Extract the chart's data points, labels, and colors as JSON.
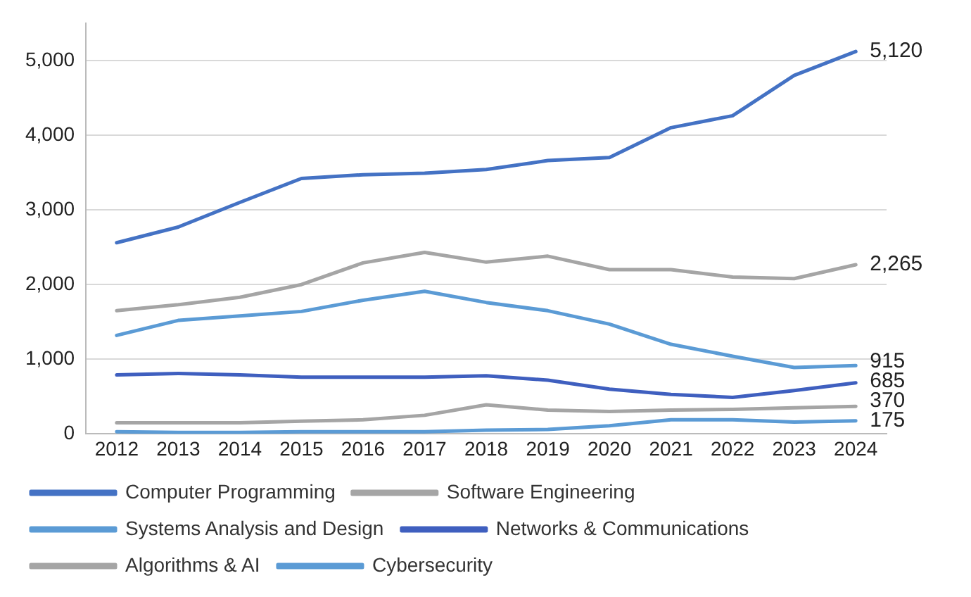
{
  "chart_data": {
    "type": "line",
    "categories": [
      "2012",
      "2013",
      "2014",
      "2015",
      "2016",
      "2017",
      "2018",
      "2019",
      "2020",
      "2021",
      "2022",
      "2023",
      "2024"
    ],
    "series": [
      {
        "name": "Computer Programming",
        "color": "#4472c4",
        "values": [
          2560,
          2770,
          3100,
          3420,
          3470,
          3490,
          3540,
          3660,
          3700,
          4100,
          4260,
          4800,
          5120
        ],
        "value_labels": [
          null,
          null,
          null,
          null,
          null,
          null,
          null,
          null,
          null,
          null,
          null,
          null,
          "5,120"
        ]
      },
      {
        "name": "Software Engineering",
        "color": "#a5a5a5",
        "values": [
          1650,
          1730,
          1830,
          2000,
          2290,
          2430,
          2300,
          2380,
          2200,
          2200,
          2100,
          2080,
          2265
        ],
        "value_labels": [
          null,
          null,
          null,
          null,
          null,
          null,
          null,
          null,
          null,
          null,
          null,
          null,
          "2,265"
        ]
      },
      {
        "name": "Systems Analysis and Design",
        "color": "#5b9bd5",
        "values": [
          1320,
          1520,
          1580,
          1640,
          1790,
          1910,
          1760,
          1650,
          1470,
          1200,
          1040,
          890,
          915
        ],
        "value_labels": [
          null,
          null,
          null,
          null,
          null,
          null,
          null,
          null,
          null,
          null,
          null,
          null,
          "915"
        ]
      },
      {
        "name": "Networks & Communications",
        "color": "#3f5fbf",
        "values": [
          790,
          810,
          790,
          760,
          760,
          760,
          780,
          720,
          600,
          530,
          490,
          580,
          685
        ],
        "value_labels": [
          null,
          null,
          null,
          null,
          null,
          null,
          null,
          null,
          null,
          null,
          null,
          null,
          "685"
        ]
      },
      {
        "name": "Algorithms & AI",
        "color": "#a5a5a5",
        "values": [
          150,
          150,
          150,
          170,
          190,
          250,
          390,
          320,
          300,
          320,
          330,
          350,
          370
        ],
        "value_labels": [
          null,
          null,
          null,
          null,
          null,
          null,
          null,
          null,
          null,
          null,
          null,
          null,
          "370"
        ]
      },
      {
        "name": "Cybersecurity",
        "color": "#5b9bd5",
        "values": [
          30,
          20,
          20,
          30,
          30,
          30,
          50,
          60,
          110,
          190,
          190,
          160,
          175
        ],
        "value_labels": [
          null,
          null,
          null,
          null,
          null,
          null,
          null,
          null,
          null,
          null,
          null,
          null,
          "175"
        ]
      }
    ],
    "ylim": [
      0,
      5500
    ],
    "yticks": [
      0,
      {
        "value": 1000,
        "label": "1,000"
      },
      {
        "value": 2000,
        "label": "2,000"
      },
      {
        "value": 3000,
        "label": "3,000"
      },
      {
        "value": 4000,
        "label": "4,000"
      },
      {
        "value": 5000,
        "label": "5,000"
      }
    ],
    "grid": "y",
    "legend": "bottom",
    "marker": "none",
    "line_style": "solid"
  }
}
